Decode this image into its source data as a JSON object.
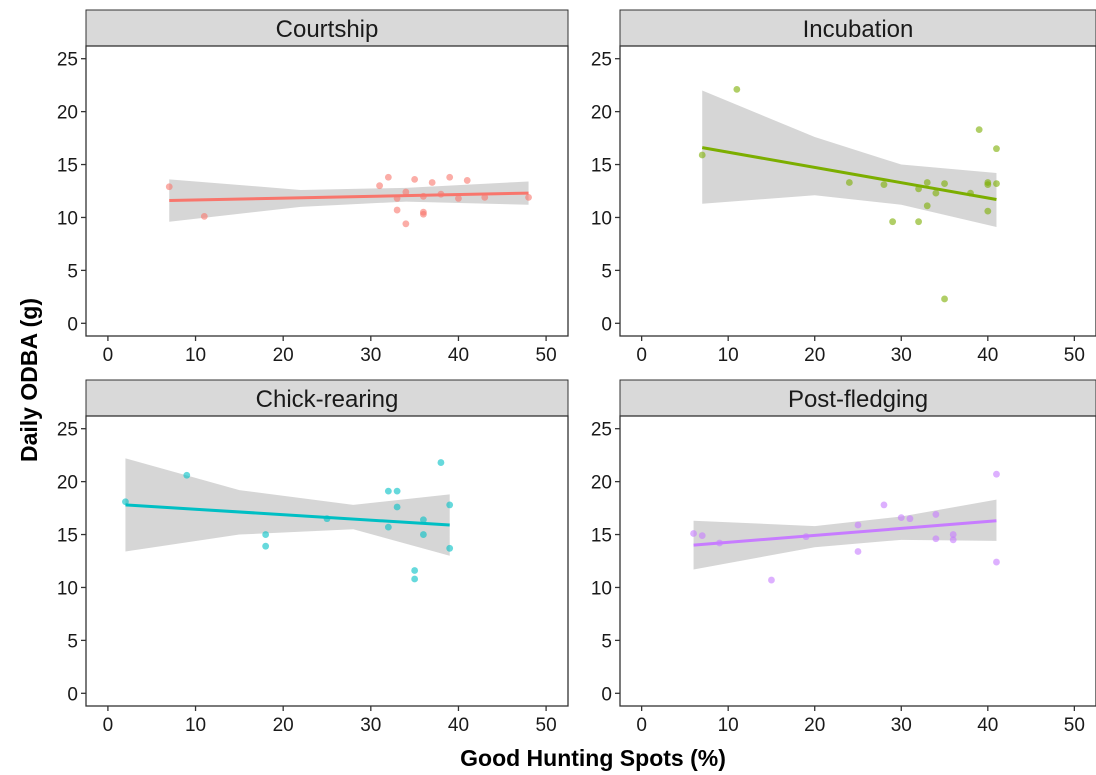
{
  "figure": {
    "xlabel": "Good Hunting Spots (%)",
    "ylabel": "Daily ODBA (g)"
  },
  "chart_data": [
    {
      "type": "scatter",
      "title": "Courtship",
      "color": "#F8766D",
      "xlim": [
        -2.5,
        52.5
      ],
      "ylim": [
        -1.2,
        26.2
      ],
      "xticks": [
        0,
        10,
        20,
        30,
        40,
        50
      ],
      "yticks": [
        0,
        5,
        10,
        15,
        20,
        25
      ],
      "points": [
        [
          7,
          12.9
        ],
        [
          11,
          10.1
        ],
        [
          31,
          13.0
        ],
        [
          32,
          13.8
        ],
        [
          33,
          11.8
        ],
        [
          33,
          10.7
        ],
        [
          34,
          12.4
        ],
        [
          34,
          9.4
        ],
        [
          35,
          13.6
        ],
        [
          36,
          12.0
        ],
        [
          36,
          10.5
        ],
        [
          36,
          10.3
        ],
        [
          37,
          13.3
        ],
        [
          38,
          12.2
        ],
        [
          39,
          13.8
        ],
        [
          40,
          11.8
        ],
        [
          41,
          13.5
        ],
        [
          43,
          11.9
        ],
        [
          48,
          11.9
        ]
      ],
      "fit": {
        "x": [
          7,
          48
        ],
        "y": [
          11.6,
          12.3
        ]
      },
      "ci": {
        "x": [
          7,
          22,
          34,
          48
        ],
        "lower": [
          9.6,
          11.0,
          11.5,
          11.2
        ],
        "upper": [
          13.6,
          12.6,
          12.8,
          13.4
        ]
      }
    },
    {
      "type": "scatter",
      "title": "Incubation",
      "color": "#7CAE00",
      "xlim": [
        -2.5,
        52.5
      ],
      "ylim": [
        -1.2,
        26.2
      ],
      "xticks": [
        0,
        10,
        20,
        30,
        40,
        50
      ],
      "yticks": [
        0,
        5,
        10,
        15,
        20,
        25
      ],
      "points": [
        [
          7,
          15.9
        ],
        [
          11,
          22.1
        ],
        [
          24,
          13.3
        ],
        [
          28,
          13.1
        ],
        [
          29,
          9.6
        ],
        [
          32,
          12.7
        ],
        [
          32,
          9.6
        ],
        [
          33,
          13.3
        ],
        [
          33,
          11.1
        ],
        [
          34,
          12.3
        ],
        [
          35,
          13.2
        ],
        [
          35,
          2.3
        ],
        [
          38,
          12.3
        ],
        [
          39,
          18.3
        ],
        [
          40,
          13.3
        ],
        [
          40,
          13.1
        ],
        [
          40,
          10.6
        ],
        [
          41,
          16.5
        ],
        [
          41,
          13.2
        ]
      ],
      "fit": {
        "x": [
          7,
          41
        ],
        "y": [
          16.6,
          11.7
        ]
      },
      "ci": {
        "x": [
          7,
          20,
          30,
          41
        ],
        "lower": [
          11.3,
          12.1,
          11.2,
          9.1
        ],
        "upper": [
          22.0,
          17.6,
          15.0,
          14.2
        ]
      }
    },
    {
      "type": "scatter",
      "title": "Chick-rearing",
      "color": "#00BFC4",
      "xlim": [
        -2.5,
        52.5
      ],
      "ylim": [
        -1.2,
        26.2
      ],
      "xticks": [
        0,
        10,
        20,
        30,
        40,
        50
      ],
      "yticks": [
        0,
        5,
        10,
        15,
        20,
        25
      ],
      "points": [
        [
          2,
          18.1
        ],
        [
          9,
          20.6
        ],
        [
          18,
          15.0
        ],
        [
          18,
          13.9
        ],
        [
          25,
          16.5
        ],
        [
          32,
          19.1
        ],
        [
          32,
          15.7
        ],
        [
          33,
          19.1
        ],
        [
          33,
          17.6
        ],
        [
          35,
          11.6
        ],
        [
          35,
          10.8
        ],
        [
          36,
          16.4
        ],
        [
          36,
          15.0
        ],
        [
          38,
          21.8
        ],
        [
          39,
          17.8
        ],
        [
          39,
          13.7
        ]
      ],
      "fit": {
        "x": [
          2,
          39
        ],
        "y": [
          17.8,
          15.9
        ]
      },
      "ci": {
        "x": [
          2,
          15,
          28,
          39
        ],
        "lower": [
          13.4,
          15.0,
          15.5,
          13.0
        ],
        "upper": [
          22.2,
          19.2,
          17.8,
          18.8
        ]
      }
    },
    {
      "type": "scatter",
      "title": "Post-fledging",
      "color": "#C77CFF",
      "xlim": [
        -2.5,
        52.5
      ],
      "ylim": [
        -1.2,
        26.2
      ],
      "xticks": [
        0,
        10,
        20,
        30,
        40,
        50
      ],
      "yticks": [
        0,
        5,
        10,
        15,
        20,
        25
      ],
      "points": [
        [
          6,
          15.1
        ],
        [
          7,
          14.9
        ],
        [
          9,
          14.2
        ],
        [
          15,
          10.7
        ],
        [
          19,
          14.8
        ],
        [
          25,
          15.9
        ],
        [
          25,
          13.4
        ],
        [
          28,
          17.8
        ],
        [
          30,
          16.6
        ],
        [
          31,
          16.5
        ],
        [
          34,
          16.9
        ],
        [
          34,
          14.6
        ],
        [
          36,
          14.5
        ],
        [
          36,
          15.0
        ],
        [
          41,
          20.7
        ],
        [
          41,
          12.4
        ]
      ],
      "fit": {
        "x": [
          6,
          41
        ],
        "y": [
          14.0,
          16.3
        ]
      },
      "ci": {
        "x": [
          6,
          20,
          30,
          41
        ],
        "lower": [
          11.7,
          13.8,
          14.5,
          14.4
        ],
        "upper": [
          16.3,
          15.8,
          16.7,
          18.3
        ]
      }
    }
  ]
}
